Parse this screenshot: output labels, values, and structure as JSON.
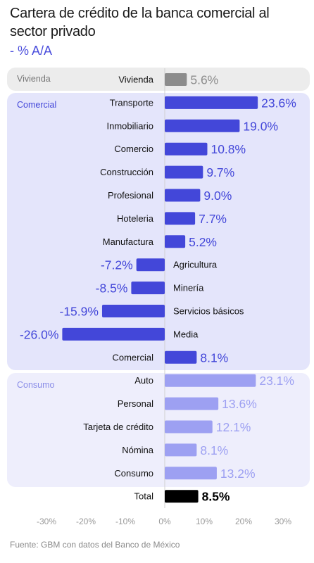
{
  "title": "Cartera de crédito  de la banca comercial al sector privado",
  "subtitle": "- % A/A",
  "source": "Fuente: GBM con datos del Banco de México",
  "colors": {
    "vivienda": "#8c8c8c",
    "comercial": "#4347d9",
    "consumo": "#9da0f2",
    "total": "#000000",
    "panel_vivienda": "#ececec",
    "panel_comercial": "#e4e5fb",
    "panel_consumo": "#eeeefc"
  },
  "groups": [
    {
      "key": "vivienda",
      "label": "Vivienda"
    },
    {
      "key": "comercial",
      "label": "Comercial"
    },
    {
      "key": "consumo",
      "label": "Consumo"
    }
  ],
  "chart_data": {
    "type": "bar",
    "orientation": "horizontal",
    "xlim": [
      -30,
      30
    ],
    "x_ticks": [
      "-30%",
      "-20%",
      "-10%",
      "0%",
      "10%",
      "20%",
      "30%"
    ],
    "x_tick_values": [
      -30,
      -20,
      -10,
      0,
      10,
      20,
      30
    ],
    "categories": [
      "Vivienda",
      "Transporte",
      "Inmobiliario",
      "Comercio",
      "Construcción",
      "Profesional",
      "Hoteleria",
      "Manufactura",
      "Agricultura",
      "Minería",
      "Servicios básicos",
      "Media",
      "Comercial",
      "Auto",
      "Personal",
      "Tarjeta de crédito",
      "Nómina",
      "Consumo",
      "Total"
    ],
    "values": [
      5.6,
      23.6,
      19.0,
      10.8,
      9.7,
      9.0,
      7.7,
      5.2,
      -7.2,
      -8.5,
      -15.9,
      -26.0,
      8.1,
      23.1,
      13.6,
      12.1,
      8.1,
      13.2,
      8.5
    ],
    "value_labels": [
      "5.6%",
      "23.6%",
      "19.0%",
      "10.8%",
      "9.7%",
      "9.0%",
      "7.7%",
      "5.2%",
      "-7.2%",
      "-8.5%",
      "-15.9%",
      "-26.0%",
      "8.1%",
      "23.1%",
      "13.6%",
      "12.1%",
      "8.1%",
      "13.2%",
      "8.5%"
    ],
    "groups": [
      "vivienda",
      "comercial",
      "comercial",
      "comercial",
      "comercial",
      "comercial",
      "comercial",
      "comercial",
      "comercial",
      "comercial",
      "comercial",
      "comercial",
      "comercial",
      "consumo",
      "consumo",
      "consumo",
      "consumo",
      "consumo",
      "total"
    ]
  }
}
